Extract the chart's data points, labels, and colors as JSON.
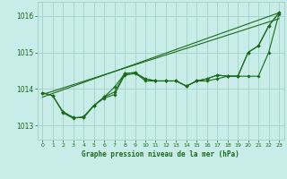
{
  "background_color": "#c8ece8",
  "grid_color": "#a8d4cc",
  "line_color": "#1a6b1a",
  "text_color": "#1a6b1a",
  "xlabel": "Graphe pression niveau de la mer (hPa)",
  "ylim": [
    1012.62,
    1016.38
  ],
  "xlim": [
    -0.5,
    23.5
  ],
  "yticks": [
    1013,
    1014,
    1015,
    1016
  ],
  "xticks": [
    0,
    1,
    2,
    3,
    4,
    5,
    6,
    7,
    8,
    9,
    10,
    11,
    12,
    13,
    14,
    15,
    16,
    17,
    18,
    19,
    20,
    21,
    22,
    23
  ],
  "series1": {
    "x": [
      0,
      1,
      2,
      3,
      4,
      5,
      6,
      7,
      8,
      9,
      10,
      11,
      12,
      13,
      14,
      15,
      16,
      17,
      18,
      19,
      20,
      21,
      22,
      23
    ],
    "y": [
      1013.9,
      1013.82,
      1013.35,
      1013.2,
      1013.25,
      1013.55,
      1013.75,
      1013.85,
      1014.38,
      1014.42,
      1014.28,
      1014.22,
      1014.22,
      1014.22,
      1014.08,
      1014.22,
      1014.22,
      1014.28,
      1014.35,
      1014.35,
      1014.35,
      1014.35,
      1015.0,
      1016.05
    ]
  },
  "series2": {
    "x": [
      0,
      1,
      2,
      3,
      4,
      5,
      6,
      7,
      8,
      9,
      10,
      11,
      12,
      13,
      14,
      15,
      16,
      17,
      18,
      19,
      20,
      21,
      22,
      23
    ],
    "y": [
      1013.9,
      1013.82,
      1013.38,
      1013.22,
      1013.22,
      1013.55,
      1013.78,
      1014.05,
      1014.42,
      1014.45,
      1014.28,
      1014.22,
      1014.22,
      1014.22,
      1014.08,
      1014.22,
      1014.28,
      1014.38,
      1014.35,
      1014.35,
      1015.0,
      1015.18,
      1015.72,
      1016.08
    ]
  },
  "series3": {
    "x": [
      2,
      3,
      4,
      5,
      6,
      7,
      8,
      9,
      10,
      11,
      12,
      13,
      14,
      15,
      16,
      17,
      18,
      19,
      20,
      21,
      22,
      23
    ],
    "y": [
      1013.38,
      1013.22,
      1013.22,
      1013.55,
      1013.78,
      1013.92,
      1014.42,
      1014.45,
      1014.22,
      1014.22,
      1014.22,
      1014.22,
      1014.08,
      1014.22,
      1014.28,
      1014.38,
      1014.35,
      1014.35,
      1015.0,
      1015.18,
      1015.72,
      1016.08
    ]
  },
  "trend1": {
    "x": [
      0,
      23
    ],
    "y": [
      1013.78,
      1016.08
    ]
  },
  "trend2": {
    "x": [
      0,
      23
    ],
    "y": [
      1013.85,
      1015.92
    ]
  }
}
